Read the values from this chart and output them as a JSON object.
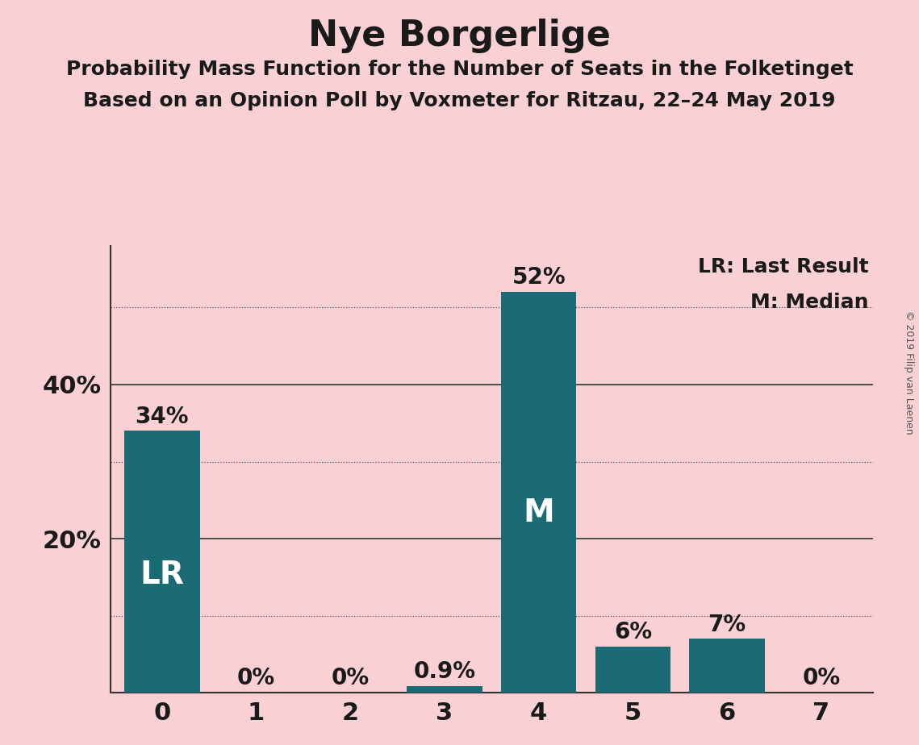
{
  "title": "Nye Borgerlige",
  "subtitle1": "Probability Mass Function for the Number of Seats in the Folketinget",
  "subtitle2": "Based on an Opinion Poll by Voxmeter for Ritzau, 22–24 May 2019",
  "categories": [
    0,
    1,
    2,
    3,
    4,
    5,
    6,
    7
  ],
  "values": [
    0.34,
    0.0,
    0.0,
    0.009,
    0.52,
    0.06,
    0.07,
    0.0
  ],
  "labels": [
    "34%",
    "0%",
    "0%",
    "0.9%",
    "52%",
    "6%",
    "7%",
    "0%"
  ],
  "bar_color": "#1a6b74",
  "background_color": "#f9d0d4",
  "title_fontsize": 32,
  "subtitle_fontsize": 18,
  "label_fontsize": 20,
  "tick_fontsize": 22,
  "solid_grid_lines": [
    0.2,
    0.4
  ],
  "dotted_grid_lines": [
    0.1,
    0.3,
    0.5
  ],
  "LR_bar": 0,
  "M_bar": 4,
  "legend_text1": "LR: Last Result",
  "legend_text2": "M: Median",
  "legend_fontsize": 18,
  "copyright_text": "© 2019 Filip van Laenen",
  "ylim": [
    0,
    0.58
  ],
  "xlim": [
    -0.55,
    7.55
  ]
}
